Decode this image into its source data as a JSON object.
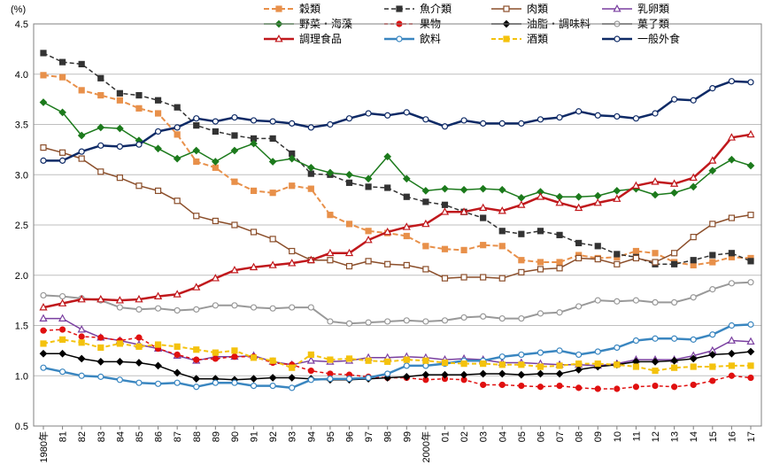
{
  "chart_data": {
    "type": "line",
    "unit_label": "(%)",
    "ylim": [
      0.5,
      4.5
    ],
    "yticks": [
      "0.5",
      "1.0",
      "1.5",
      "2.0",
      "2.5",
      "3.0",
      "3.5",
      "4.0",
      "4.5"
    ],
    "ytick_values": [
      0.5,
      1.0,
      1.5,
      2.0,
      2.5,
      3.0,
      3.5,
      4.0,
      4.5
    ],
    "categories": [
      "1980年",
      "81",
      "82",
      "83",
      "84",
      "85",
      "86",
      "87",
      "88",
      "89",
      "90",
      "91",
      "92",
      "93",
      "94",
      "95",
      "96",
      "97",
      "98",
      "99",
      "2000年",
      "01",
      "02",
      "03",
      "04",
      "05",
      "06",
      "07",
      "08",
      "09",
      "10",
      "11",
      "12",
      "13",
      "14",
      "15",
      "16",
      "17"
    ],
    "grid": true,
    "legend_position": "top",
    "series": [
      {
        "name": "穀類",
        "color": "#E8904A",
        "dash": "6,3",
        "marker": "square",
        "filled": true,
        "width": 2,
        "values": [
          3.99,
          3.97,
          3.84,
          3.79,
          3.74,
          3.66,
          3.61,
          3.4,
          3.13,
          3.07,
          2.93,
          2.84,
          2.82,
          2.89,
          2.86,
          2.6,
          2.51,
          2.44,
          2.42,
          2.39,
          2.29,
          2.26,
          2.25,
          2.3,
          2.29,
          2.15,
          2.13,
          2.13,
          2.2,
          2.17,
          2.18,
          2.24,
          2.22,
          2.13,
          2.1,
          2.13,
          2.18,
          2.17
        ]
      },
      {
        "name": "魚介類",
        "color": "#333333",
        "dash": "5,3",
        "marker": "square",
        "filled": true,
        "width": 1.5,
        "values": [
          4.21,
          4.12,
          4.1,
          3.96,
          3.81,
          3.79,
          3.74,
          3.67,
          3.49,
          3.43,
          3.39,
          3.36,
          3.36,
          3.21,
          3.01,
          3.0,
          2.92,
          2.88,
          2.87,
          2.78,
          2.73,
          2.7,
          2.63,
          2.57,
          2.44,
          2.41,
          2.44,
          2.4,
          2.32,
          2.29,
          2.21,
          2.18,
          2.11,
          2.11,
          2.15,
          2.2,
          2.22,
          2.14
        ]
      },
      {
        "name": "肉類",
        "color": "#8B4E2A",
        "dash": "",
        "marker": "square",
        "filled": false,
        "width": 1.5,
        "values": [
          3.27,
          3.22,
          3.16,
          3.03,
          2.97,
          2.89,
          2.84,
          2.74,
          2.59,
          2.54,
          2.5,
          2.43,
          2.36,
          2.24,
          2.15,
          2.15,
          2.09,
          2.14,
          2.11,
          2.1,
          2.06,
          1.97,
          1.98,
          1.98,
          1.97,
          2.03,
          2.06,
          2.07,
          2.17,
          2.16,
          2.11,
          2.17,
          2.13,
          2.22,
          2.38,
          2.51,
          2.57,
          2.6
        ]
      },
      {
        "name": "乳卵類",
        "color": "#7A3FA0",
        "dash": "",
        "marker": "triangle",
        "filled": false,
        "width": 1.5,
        "values": [
          1.57,
          1.57,
          1.46,
          1.38,
          1.35,
          1.31,
          1.27,
          1.2,
          1.15,
          1.19,
          1.19,
          1.2,
          1.14,
          1.11,
          1.15,
          1.14,
          1.15,
          1.18,
          1.18,
          1.19,
          1.18,
          1.16,
          1.17,
          1.16,
          1.13,
          1.13,
          1.12,
          1.11,
          1.11,
          1.1,
          1.12,
          1.16,
          1.16,
          1.16,
          1.2,
          1.25,
          1.35,
          1.34
        ]
      },
      {
        "name": "野菜・海藻",
        "color": "#1C7A1C",
        "dash": "",
        "marker": "diamond",
        "filled": true,
        "width": 1.5,
        "values": [
          3.72,
          3.62,
          3.39,
          3.47,
          3.46,
          3.34,
          3.26,
          3.16,
          3.24,
          3.13,
          3.24,
          3.31,
          3.13,
          3.16,
          3.07,
          3.02,
          3.0,
          2.96,
          3.18,
          2.96,
          2.84,
          2.86,
          2.85,
          2.86,
          2.85,
          2.77,
          2.83,
          2.78,
          2.78,
          2.79,
          2.84,
          2.86,
          2.8,
          2.82,
          2.88,
          3.04,
          3.15,
          3.09
        ]
      },
      {
        "name": "果物",
        "color": "#E01010",
        "dash": "4,3",
        "marker": "circle",
        "filled": true,
        "width": 1.5,
        "values": [
          1.45,
          1.46,
          1.39,
          1.38,
          1.35,
          1.38,
          1.27,
          1.21,
          1.16,
          1.17,
          1.19,
          1.19,
          1.13,
          1.11,
          1.05,
          1.02,
          1.01,
          0.99,
          0.98,
          0.98,
          0.96,
          0.97,
          0.96,
          0.91,
          0.91,
          0.9,
          0.89,
          0.9,
          0.88,
          0.87,
          0.87,
          0.89,
          0.9,
          0.89,
          0.91,
          0.95,
          1.0,
          0.98
        ]
      },
      {
        "name": "油脂・調味料",
        "color": "#000000",
        "dash": "",
        "marker": "diamond",
        "filled": true,
        "width": 1.5,
        "values": [
          1.22,
          1.22,
          1.17,
          1.14,
          1.14,
          1.13,
          1.1,
          1.03,
          0.97,
          0.97,
          0.96,
          0.97,
          0.98,
          0.98,
          0.97,
          0.96,
          0.96,
          0.97,
          0.98,
          0.99,
          1.01,
          1.01,
          1.01,
          1.02,
          1.02,
          1.01,
          1.02,
          1.02,
          1.06,
          1.09,
          1.11,
          1.14,
          1.14,
          1.15,
          1.17,
          1.21,
          1.22,
          1.24
        ]
      },
      {
        "name": "菓子類",
        "color": "#999999",
        "dash": "",
        "marker": "circle",
        "filled": false,
        "width": 2,
        "values": [
          1.8,
          1.79,
          1.77,
          1.75,
          1.68,
          1.66,
          1.67,
          1.65,
          1.66,
          1.7,
          1.7,
          1.68,
          1.67,
          1.68,
          1.68,
          1.54,
          1.52,
          1.53,
          1.54,
          1.55,
          1.54,
          1.55,
          1.58,
          1.59,
          1.57,
          1.57,
          1.62,
          1.63,
          1.69,
          1.75,
          1.74,
          1.75,
          1.73,
          1.73,
          1.78,
          1.86,
          1.92,
          1.93
        ]
      },
      {
        "name": "調理食品",
        "color": "#C0181C",
        "dash": "",
        "marker": "triangle",
        "filled": false,
        "width": 2.5,
        "values": [
          1.68,
          1.72,
          1.76,
          1.76,
          1.75,
          1.76,
          1.79,
          1.81,
          1.88,
          1.97,
          2.05,
          2.08,
          2.1,
          2.12,
          2.15,
          2.22,
          2.22,
          2.35,
          2.43,
          2.48,
          2.51,
          2.63,
          2.63,
          2.67,
          2.64,
          2.7,
          2.78,
          2.72,
          2.67,
          2.72,
          2.76,
          2.89,
          2.93,
          2.91,
          2.97,
          3.14,
          3.37,
          3.4
        ]
      },
      {
        "name": "飲料",
        "color": "#3A86C0",
        "dash": "",
        "marker": "circle",
        "filled": false,
        "width": 2.5,
        "values": [
          1.08,
          1.04,
          1.0,
          0.99,
          0.96,
          0.93,
          0.92,
          0.93,
          0.89,
          0.93,
          0.93,
          0.9,
          0.9,
          0.88,
          0.96,
          0.97,
          0.97,
          0.98,
          1.02,
          1.1,
          1.1,
          1.12,
          1.15,
          1.15,
          1.19,
          1.21,
          1.23,
          1.25,
          1.21,
          1.24,
          1.28,
          1.35,
          1.37,
          1.37,
          1.36,
          1.41,
          1.5,
          1.51
        ]
      },
      {
        "name": "酒類",
        "color": "#F4C20D",
        "dash": "5,3",
        "marker": "square",
        "filled": true,
        "width": 2,
        "values": [
          1.32,
          1.36,
          1.33,
          1.28,
          1.32,
          1.29,
          1.31,
          1.29,
          1.26,
          1.23,
          1.25,
          1.18,
          1.15,
          1.08,
          1.21,
          1.16,
          1.17,
          1.15,
          1.14,
          1.16,
          1.15,
          1.13,
          1.12,
          1.12,
          1.11,
          1.11,
          1.09,
          1.1,
          1.12,
          1.12,
          1.11,
          1.09,
          1.05,
          1.08,
          1.09,
          1.09,
          1.1,
          1.1
        ]
      },
      {
        "name": "一般外食",
        "color": "#0E2A66",
        "dash": "",
        "marker": "circle",
        "filled": false,
        "width": 2.5,
        "values": [
          3.14,
          3.14,
          3.23,
          3.29,
          3.28,
          3.3,
          3.43,
          3.47,
          3.56,
          3.53,
          3.57,
          3.54,
          3.53,
          3.51,
          3.47,
          3.5,
          3.56,
          3.61,
          3.59,
          3.62,
          3.55,
          3.48,
          3.54,
          3.51,
          3.51,
          3.51,
          3.55,
          3.57,
          3.63,
          3.59,
          3.58,
          3.56,
          3.61,
          3.75,
          3.74,
          3.86,
          3.93,
          3.92
        ]
      }
    ]
  }
}
